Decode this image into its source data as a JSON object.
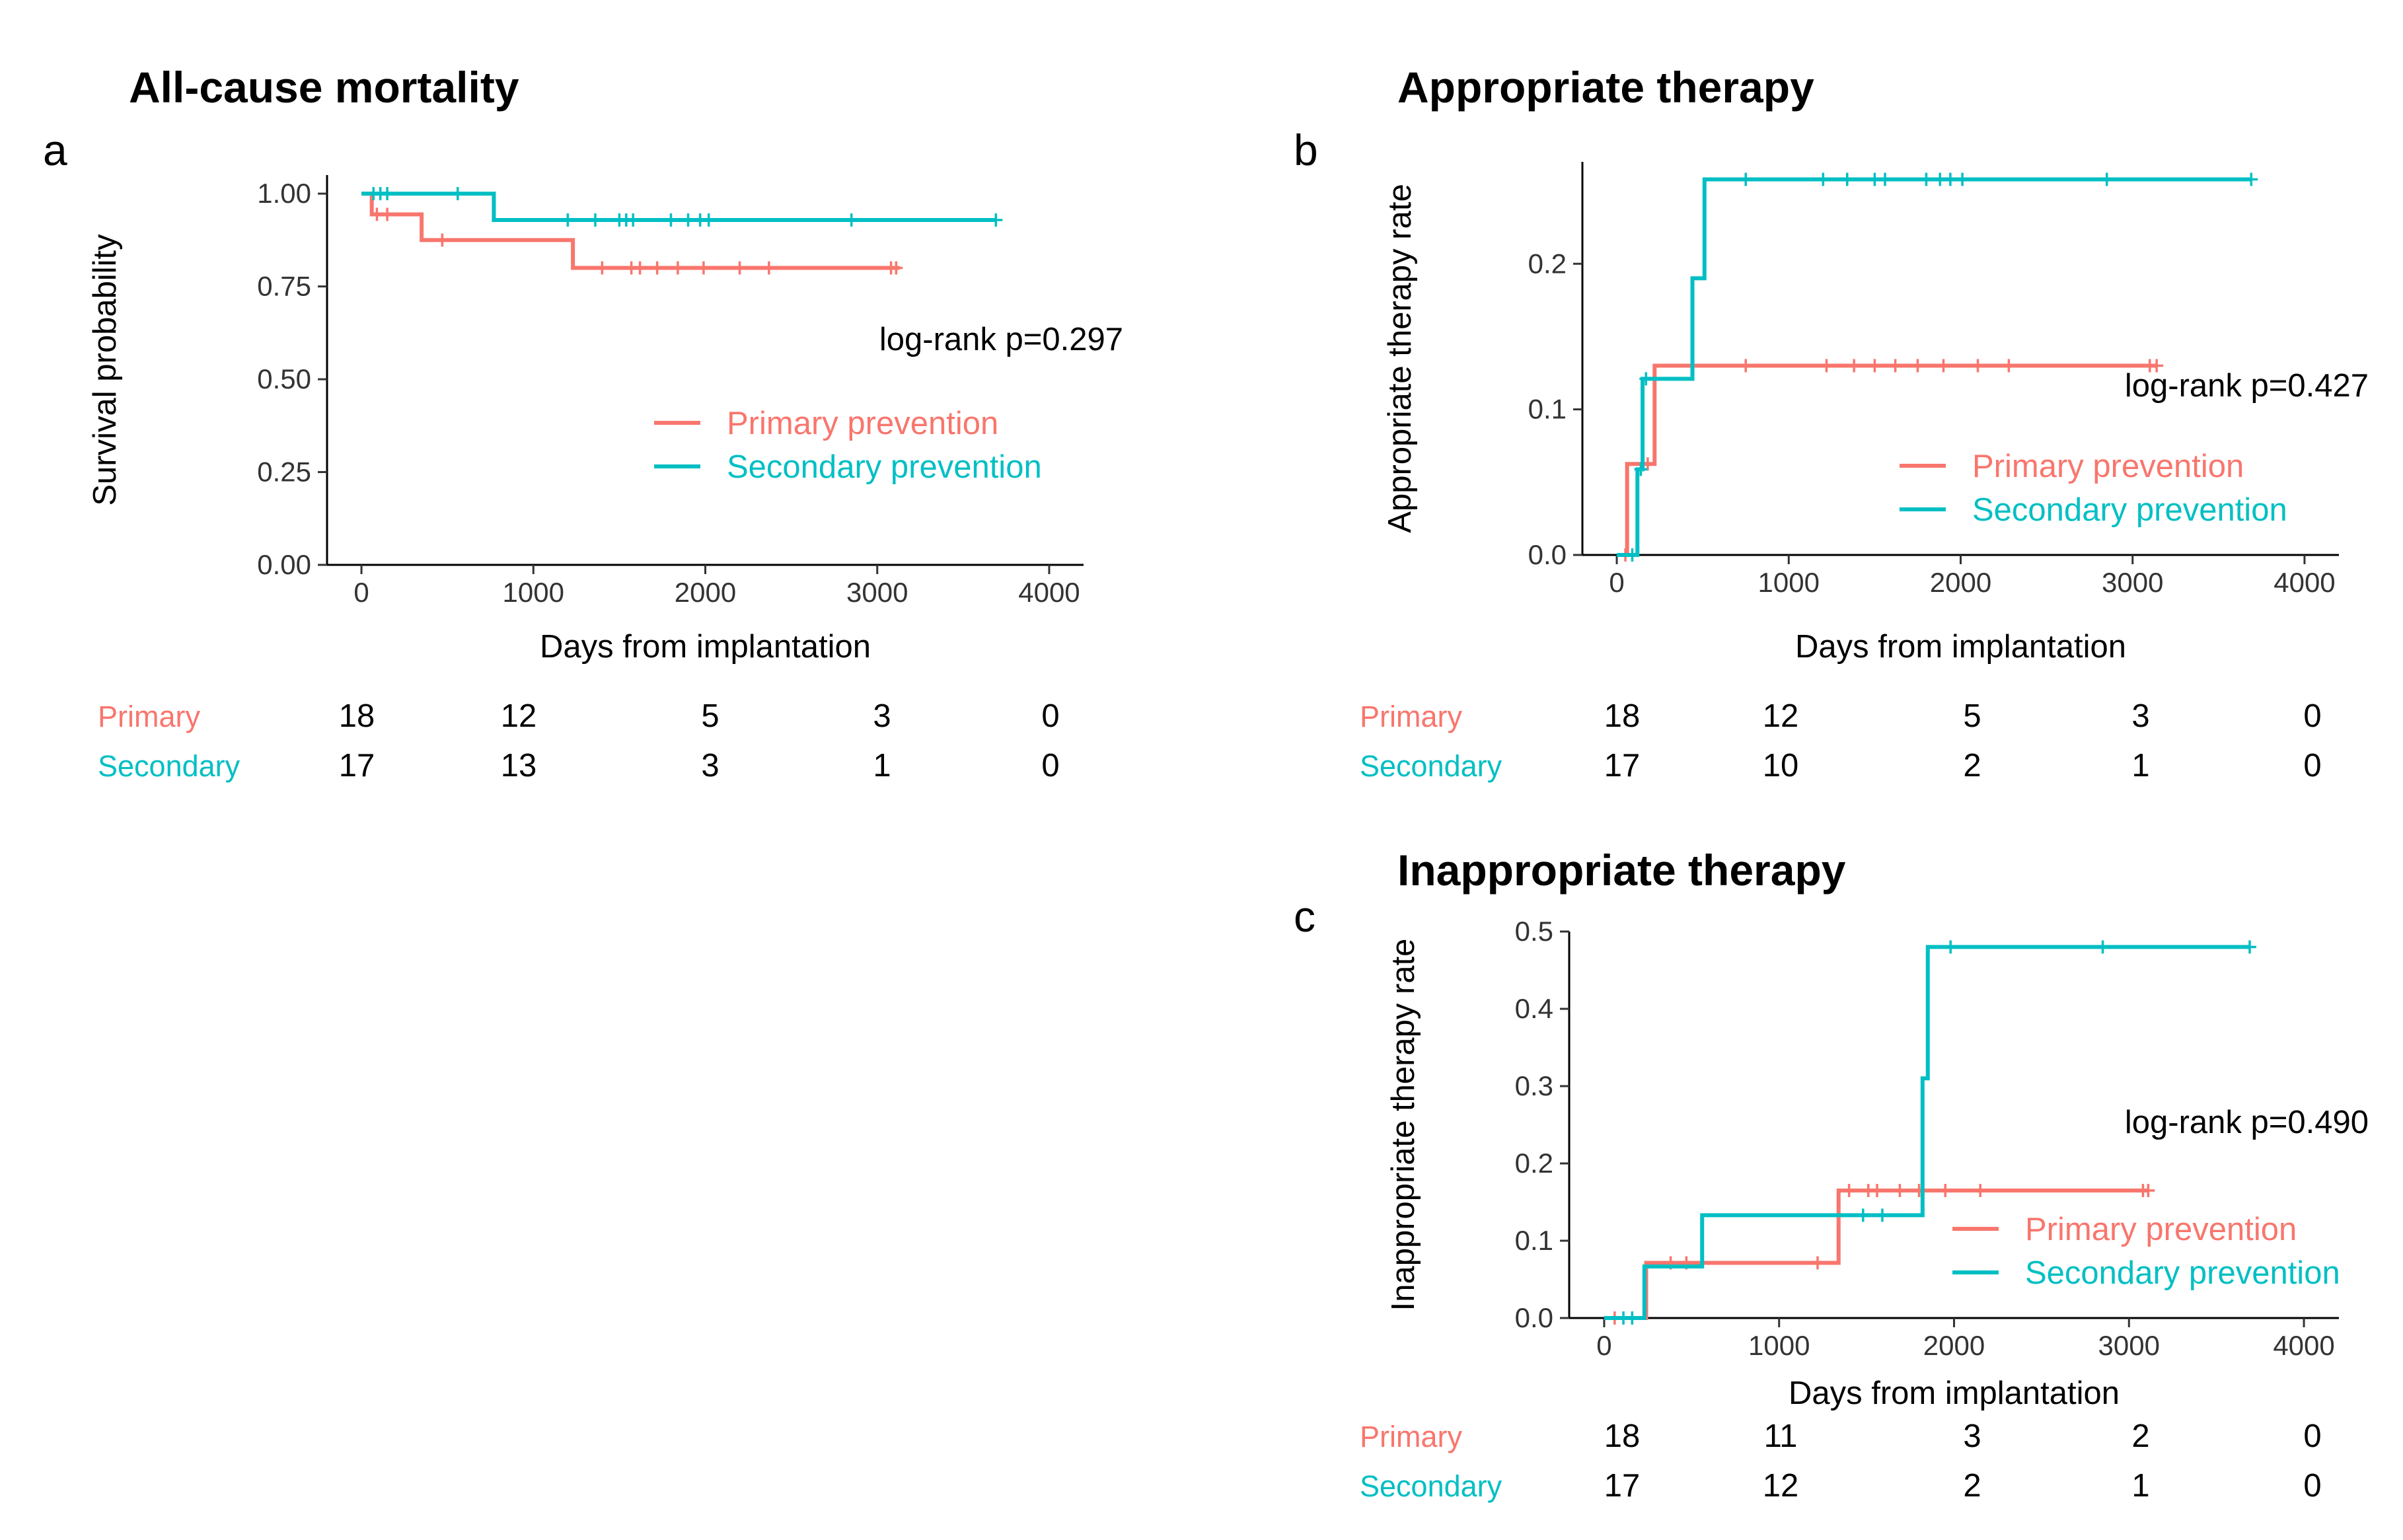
{
  "colors": {
    "primary": "#F8766D",
    "secondary": "#00BFC4"
  },
  "chart_data": [
    {
      "id": "a",
      "type": "line",
      "panel_letter": "a",
      "title": "All-cause mortality",
      "xlabel": "Days from implantation",
      "ylabel": "Survival probability",
      "xlim": [
        -200,
        4200
      ],
      "ylim": [
        0,
        1.05
      ],
      "xticks": [
        0,
        1000,
        2000,
        3000,
        4000
      ],
      "xtick_labels": [
        "0",
        "1000",
        "2000",
        "3000",
        "4000"
      ],
      "yticks": [
        0,
        0.25,
        0.5,
        0.75,
        1.0
      ],
      "ytick_labels": [
        "0.00",
        "0.25",
        "0.50",
        "0.75",
        "1.00"
      ],
      "pvalue": "log-rank p=0.297",
      "legend_position": "right",
      "series": [
        {
          "name": "Primary prevention",
          "short": "Primary",
          "color": "#F8766D",
          "steps": [
            [
              0,
              1.0
            ],
            [
              60,
              0.944
            ],
            [
              350,
              0.875
            ],
            [
              1230,
              0.8
            ],
            [
              3130,
              0.8
            ]
          ],
          "censors": [
            [
              90,
              0.944
            ],
            [
              150,
              0.944
            ],
            [
              470,
              0.875
            ],
            [
              1400,
              0.8
            ],
            [
              1570,
              0.8
            ],
            [
              1620,
              0.8
            ],
            [
              1720,
              0.8
            ],
            [
              1840,
              0.8
            ],
            [
              1990,
              0.8
            ],
            [
              2200,
              0.8
            ],
            [
              2370,
              0.8
            ],
            [
              3080,
              0.8
            ],
            [
              3110,
              0.8
            ]
          ],
          "risk": [
            "18",
            "12",
            "5",
            "3",
            "0"
          ]
        },
        {
          "name": "Secondary prevention",
          "short": "Secondary",
          "color": "#00BFC4",
          "steps": [
            [
              0,
              1.0
            ],
            [
              770,
              0.929
            ],
            [
              3690,
              0.929
            ]
          ],
          "censors": [
            [
              70,
              1.0
            ],
            [
              110,
              1.0
            ],
            [
              150,
              1.0
            ],
            [
              560,
              1.0
            ],
            [
              1200,
              0.929
            ],
            [
              1360,
              0.929
            ],
            [
              1500,
              0.929
            ],
            [
              1540,
              0.929
            ],
            [
              1580,
              0.929
            ],
            [
              1800,
              0.929
            ],
            [
              1900,
              0.929
            ],
            [
              1970,
              0.929
            ],
            [
              2020,
              0.929
            ],
            [
              2850,
              0.929
            ],
            [
              3690,
              0.929
            ]
          ],
          "risk": [
            "17",
            "13",
            "3",
            "1",
            "0"
          ]
        }
      ]
    },
    {
      "id": "b",
      "type": "line",
      "panel_letter": "b",
      "title": "Appropriate therapy",
      "xlabel": "Days from implantation",
      "ylabel": "Appropriate therapy rate",
      "xlim": [
        -200,
        4200
      ],
      "ylim": [
        0,
        0.27
      ],
      "xticks": [
        0,
        1000,
        2000,
        3000,
        4000
      ],
      "xtick_labels": [
        "0",
        "1000",
        "2000",
        "3000",
        "4000"
      ],
      "yticks": [
        0,
        0.1,
        0.2
      ],
      "ytick_labels": [
        "0.0",
        "0.1",
        "0.2"
      ],
      "pvalue": "log-rank p=0.427",
      "legend_position": "right",
      "series": [
        {
          "name": "Primary prevention",
          "short": "Primary",
          "color": "#F8766D",
          "steps": [
            [
              0,
              0
            ],
            [
              60,
              0.0625
            ],
            [
              220,
              0.13
            ],
            [
              3140,
              0.13
            ]
          ],
          "censors": [
            [
              50,
              0
            ],
            [
              180,
              0.0625
            ],
            [
              750,
              0.13
            ],
            [
              1220,
              0.13
            ],
            [
              1380,
              0.13
            ],
            [
              1500,
              0.13
            ],
            [
              1620,
              0.13
            ],
            [
              1750,
              0.13
            ],
            [
              1900,
              0.13
            ],
            [
              2100,
              0.13
            ],
            [
              2280,
              0.13
            ],
            [
              3100,
              0.13
            ],
            [
              3140,
              0.13
            ]
          ],
          "risk": [
            "18",
            "12",
            "5",
            "3",
            "0"
          ]
        },
        {
          "name": "Secondary prevention",
          "short": "Secondary",
          "color": "#00BFC4",
          "steps": [
            [
              0,
              0
            ],
            [
              120,
              0.0588
            ],
            [
              150,
              0.121
            ],
            [
              440,
              0.19
            ],
            [
              510,
              0.258
            ],
            [
              3690,
              0.258
            ]
          ],
          "censors": [
            [
              90,
              0
            ],
            [
              140,
              0.0588
            ],
            [
              170,
              0.121
            ],
            [
              750,
              0.258
            ],
            [
              1200,
              0.258
            ],
            [
              1340,
              0.258
            ],
            [
              1500,
              0.258
            ],
            [
              1560,
              0.258
            ],
            [
              1800,
              0.258
            ],
            [
              1880,
              0.258
            ],
            [
              1940,
              0.258
            ],
            [
              2010,
              0.258
            ],
            [
              2850,
              0.258
            ],
            [
              3690,
              0.258
            ]
          ],
          "risk": [
            "17",
            "10",
            "2",
            "1",
            "0"
          ]
        }
      ]
    },
    {
      "id": "c",
      "type": "line",
      "panel_letter": "c",
      "title": "Inappropriate therapy",
      "xlabel": "Days from implantation",
      "ylabel": "Inappropriate therapy rate",
      "xlim": [
        -200,
        4200
      ],
      "ylim": [
        0,
        0.5
      ],
      "xticks": [
        0,
        1000,
        2000,
        3000,
        4000
      ],
      "xtick_labels": [
        "0",
        "1000",
        "2000",
        "3000",
        "4000"
      ],
      "yticks": [
        0,
        0.1,
        0.2,
        0.3,
        0.4,
        0.5
      ],
      "ytick_labels": [
        "0.0",
        "0.1",
        "0.2",
        "0.3",
        "0.4",
        "0.5"
      ],
      "pvalue": "log-rank p=0.490",
      "legend_position": "right",
      "series": [
        {
          "name": "Primary prevention",
          "short": "Primary",
          "color": "#F8766D",
          "steps": [
            [
              0,
              0
            ],
            [
              240,
              0.0714
            ],
            [
              1340,
              0.165
            ],
            [
              3110,
              0.165
            ]
          ],
          "censors": [
            [
              60,
              0
            ],
            [
              380,
              0.0714
            ],
            [
              470,
              0.0714
            ],
            [
              1220,
              0.0714
            ],
            [
              1400,
              0.165
            ],
            [
              1510,
              0.165
            ],
            [
              1560,
              0.165
            ],
            [
              1690,
              0.165
            ],
            [
              1800,
              0.165
            ],
            [
              1950,
              0.165
            ],
            [
              2150,
              0.165
            ],
            [
              3080,
              0.165
            ],
            [
              3110,
              0.165
            ]
          ],
          "risk": [
            "18",
            "11",
            "3",
            "2",
            "0"
          ]
        },
        {
          "name": "Secondary prevention",
          "short": "Secondary",
          "color": "#00BFC4",
          "steps": [
            [
              0,
              0
            ],
            [
              230,
              0.0667
            ],
            [
              560,
              0.133
            ],
            [
              1820,
              0.31
            ],
            [
              1850,
              0.48
            ],
            [
              3690,
              0.48
            ]
          ],
          "censors": [
            [
              110,
              0
            ],
            [
              160,
              0
            ],
            [
              1480,
              0.133
            ],
            [
              1590,
              0.133
            ],
            [
              1980,
              0.48
            ],
            [
              2850,
              0.48
            ],
            [
              3690,
              0.48
            ]
          ],
          "risk": [
            "17",
            "12",
            "2",
            "1",
            "0"
          ]
        }
      ]
    }
  ]
}
